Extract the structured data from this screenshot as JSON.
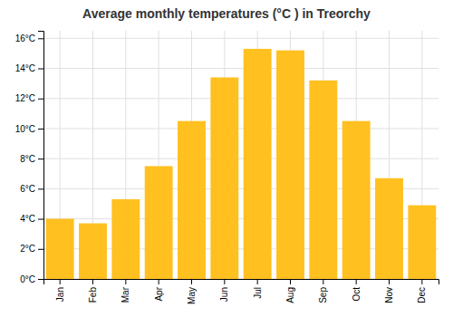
{
  "chart_data": {
    "type": "bar",
    "title": "Average monthly temperatures (°C ) in Treorchy",
    "categories": [
      "Jan",
      "Feb",
      "Mar",
      "Apr",
      "May",
      "Jun",
      "Jul",
      "Aug",
      "Sep",
      "Oct",
      "Nov",
      "Dec"
    ],
    "values": [
      4.0,
      3.7,
      5.3,
      7.5,
      10.5,
      13.4,
      15.3,
      15.2,
      13.2,
      10.5,
      6.7,
      4.9
    ],
    "color": "#FFC020",
    "ylim": [
      0,
      16.5
    ],
    "yticks": [
      {
        "value": 0,
        "label": "0°C"
      },
      {
        "value": 2,
        "label": "2°C"
      },
      {
        "value": 4,
        "label": "4°C"
      },
      {
        "value": 6,
        "label": "6°C"
      },
      {
        "value": 8,
        "label": "8°C"
      },
      {
        "value": 10,
        "label": "10°C"
      },
      {
        "value": 12,
        "label": "12°C"
      },
      {
        "value": 14,
        "label": "14°C"
      },
      {
        "value": 16,
        "label": "16°C"
      }
    ],
    "grid": true
  }
}
